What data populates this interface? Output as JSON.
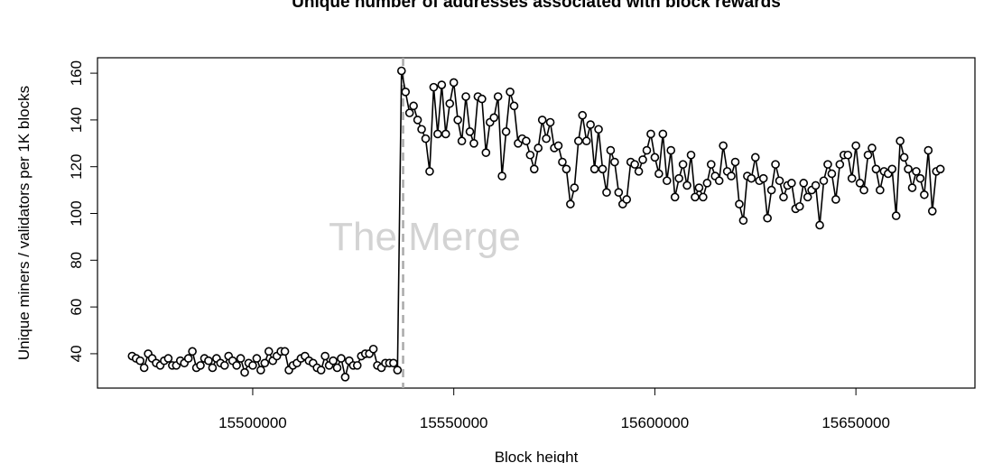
{
  "chart_data": {
    "type": "line",
    "title": "Unique number of addresses associated with block rewards",
    "xlabel": "Block height",
    "ylabel": "Unique miners / validators per 1K blocks",
    "annotations": [
      {
        "text": "The Merge",
        "x": 15537394
      }
    ],
    "xlim": [
      15461400,
      15679600
    ],
    "ylim": [
      25.3,
      166.6
    ],
    "xticks": [
      15500000,
      15550000,
      15600000,
      15650000
    ],
    "yticks": [
      40,
      60,
      80,
      100,
      120,
      140,
      160
    ],
    "x": [
      15470000,
      15471000,
      15472000,
      15473000,
      15474000,
      15475000,
      15476000,
      15477000,
      15478000,
      15479000,
      15480000,
      15481000,
      15482000,
      15483000,
      15484000,
      15485000,
      15486000,
      15487000,
      15488000,
      15489000,
      15490000,
      15491000,
      15492000,
      15493000,
      15494000,
      15495000,
      15496000,
      15497000,
      15498000,
      15499000,
      15500000,
      15501000,
      15502000,
      15503000,
      15504000,
      15505000,
      15506000,
      15507000,
      15508000,
      15509000,
      15510000,
      15511000,
      15512000,
      15513000,
      15514000,
      15515000,
      15516000,
      15517000,
      15518000,
      15519000,
      15520000,
      15521000,
      15522000,
      15523000,
      15524000,
      15525000,
      15526000,
      15527000,
      15528000,
      15529000,
      15530000,
      15531000,
      15532000,
      15533000,
      15534000,
      15535000,
      15536000,
      15537000,
      15538000,
      15539000,
      15540000,
      15541000,
      15542000,
      15543000,
      15544000,
      15545000,
      15546000,
      15547000,
      15548000,
      15549000,
      15550000,
      15551000,
      15552000,
      15553000,
      15554000,
      15555000,
      15556000,
      15557000,
      15558000,
      15559000,
      15560000,
      15561000,
      15562000,
      15563000,
      15564000,
      15565000,
      15566000,
      15567000,
      15568000,
      15569000,
      15570000,
      15571000,
      15572000,
      15573000,
      15574000,
      15575000,
      15576000,
      15577000,
      15578000,
      15579000,
      15580000,
      15581000,
      15582000,
      15583000,
      15584000,
      15585000,
      15586000,
      15587000,
      15588000,
      15589000,
      15590000,
      15591000,
      15592000,
      15593000,
      15594000,
      15595000,
      15596000,
      15597000,
      15598000,
      15599000,
      15600000,
      15601000,
      15602000,
      15603000,
      15604000,
      15605000,
      15606000,
      15607000,
      15608000,
      15609000,
      15610000,
      15611000,
      15612000,
      15613000,
      15614000,
      15615000,
      15616000,
      15617000,
      15618000,
      15619000,
      15620000,
      15621000,
      15622000,
      15623000,
      15624000,
      15625000,
      15626000,
      15627000,
      15628000,
      15629000,
      15630000,
      15631000,
      15632000,
      15633000,
      15634000,
      15635000,
      15636000,
      15637000,
      15638000,
      15639000,
      15640000,
      15641000,
      15642000,
      15643000,
      15644000,
      15645000,
      15646000,
      15647000,
      15648000,
      15649000,
      15650000,
      15651000,
      15652000,
      15653000,
      15654000,
      15655000,
      15656000,
      15657000,
      15658000,
      15659000,
      15660000,
      15661000,
      15662000,
      15663000,
      15664000,
      15665000,
      15666000,
      15667000,
      15668000,
      15669000,
      15670000,
      15671000
    ],
    "series": [
      {
        "color": "#000000",
        "values": [
          39,
          38,
          37,
          34,
          40,
          38,
          36,
          35,
          37,
          38,
          35,
          35,
          37,
          36,
          38,
          41,
          34,
          35,
          38,
          37,
          34,
          38,
          36,
          35,
          39,
          37,
          35,
          38,
          32,
          36,
          35,
          38,
          33,
          36,
          41,
          37,
          39,
          41,
          41,
          33,
          35,
          36,
          38,
          39,
          37,
          36,
          34,
          33,
          39,
          35,
          37,
          34,
          38,
          30,
          37,
          35,
          35,
          39,
          40,
          40,
          42,
          35,
          34,
          36,
          36,
          36,
          33,
          161,
          152,
          143,
          146,
          140,
          136,
          132,
          118,
          154,
          134,
          155,
          134,
          147,
          156,
          140,
          131,
          150,
          135,
          130,
          150,
          149,
          126,
          139,
          141,
          150,
          116,
          135,
          152,
          146,
          130,
          132,
          131,
          125,
          119,
          128,
          140,
          132,
          139,
          128,
          129,
          122,
          119,
          104,
          111,
          131,
          142,
          131,
          138,
          119,
          136,
          119,
          109,
          127,
          122,
          109,
          104,
          106,
          122,
          121,
          118,
          123,
          127,
          134,
          124,
          117,
          134,
          114,
          127,
          107,
          115,
          121,
          112,
          125,
          107,
          111,
          107,
          113,
          121,
          116,
          114,
          129,
          118,
          116,
          122,
          104,
          97,
          116,
          115,
          124,
          114,
          115,
          98,
          110,
          121,
          114,
          107,
          112,
          113,
          102,
          103,
          113,
          107,
          110,
          112,
          95,
          114,
          121,
          117,
          106,
          121,
          125,
          125,
          115,
          129,
          113,
          110,
          125,
          128,
          119,
          110,
          118,
          117,
          119,
          99,
          131,
          124,
          119,
          111,
          118,
          115,
          108,
          127,
          101,
          118,
          119
        ]
      }
    ]
  }
}
